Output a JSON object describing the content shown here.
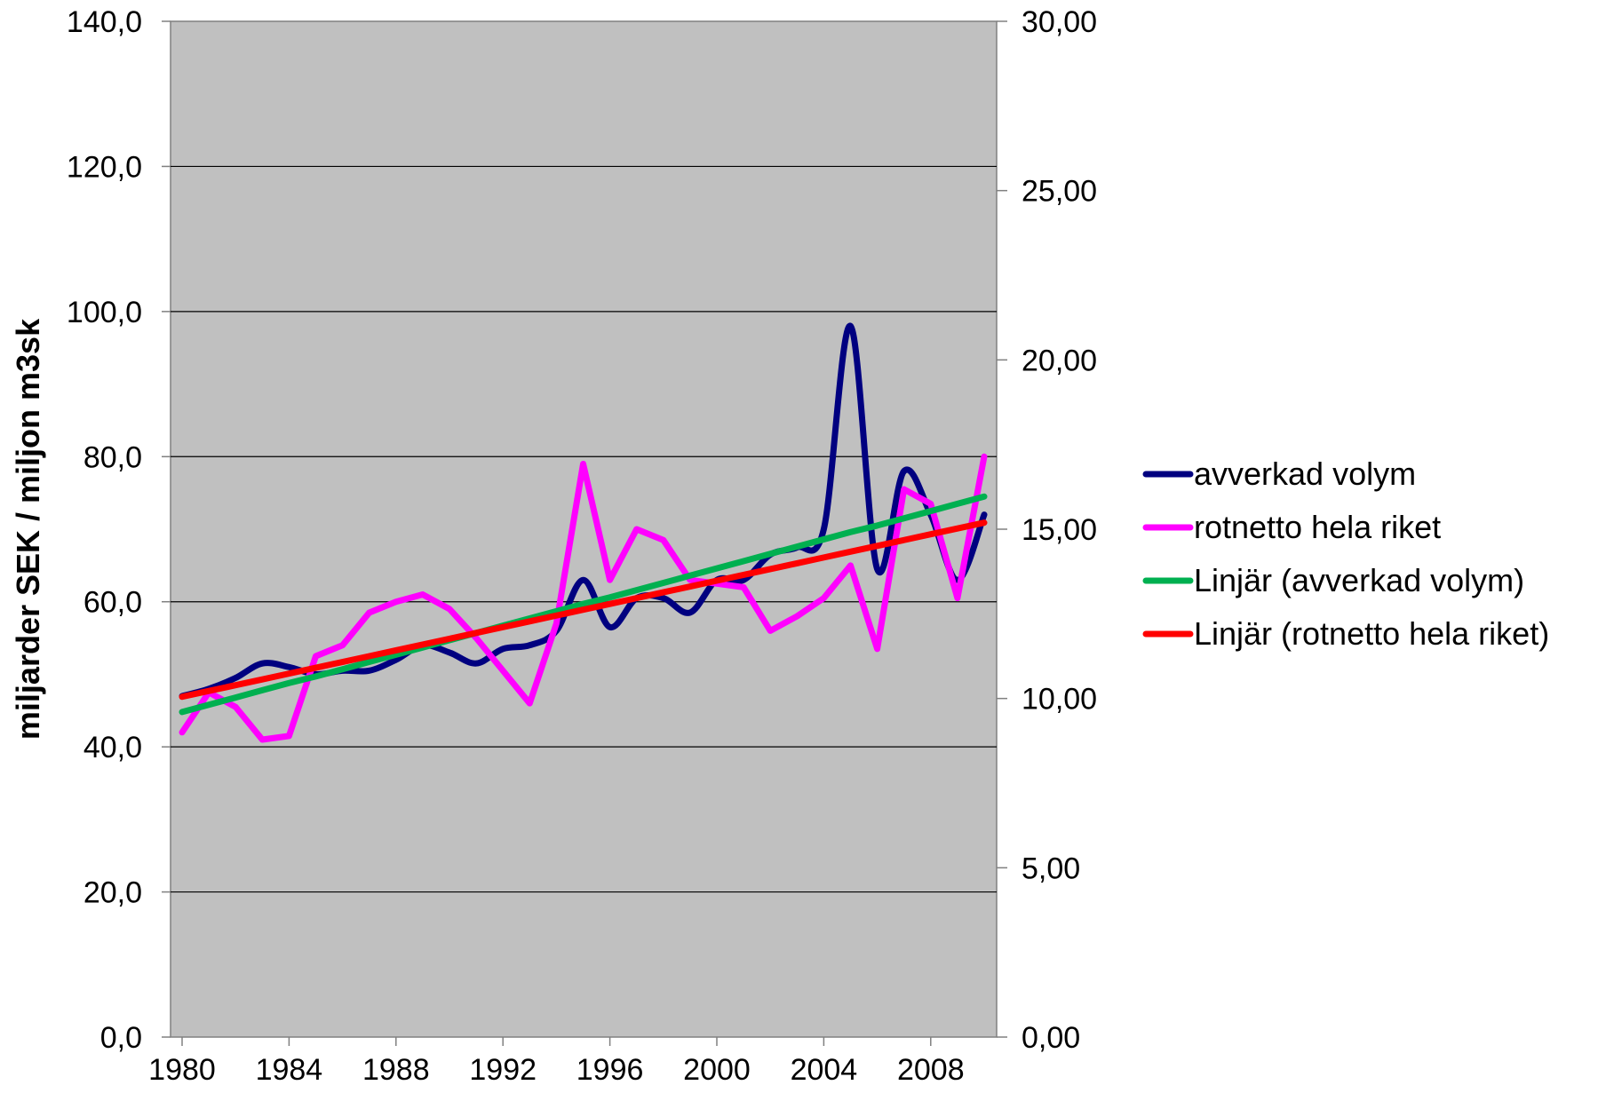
{
  "chart_data": {
    "type": "line",
    "title": "",
    "xlabel": "",
    "ylabel": "miljarder SEK / miljon m3sk",
    "y2label": "",
    "x": [
      1980,
      1981,
      1982,
      1983,
      1984,
      1985,
      1986,
      1987,
      1988,
      1989,
      1990,
      1991,
      1992,
      1993,
      1994,
      1995,
      1996,
      1997,
      1998,
      1999,
      2000,
      2001,
      2002,
      2003,
      2004,
      2005,
      2006,
      2007,
      2008,
      2009,
      2010
    ],
    "xticks": [
      "1980",
      "1984",
      "1988",
      "1992",
      "1996",
      "2000",
      "2004",
      "2008"
    ],
    "ylim": [
      0,
      140
    ],
    "yticks": [
      "0,0",
      "20,0",
      "40,0",
      "60,0",
      "80,0",
      "100,0",
      "120,0",
      "140,0"
    ],
    "y2lim": [
      0,
      30
    ],
    "y2ticks": [
      "0,00",
      "5,00",
      "10,00",
      "15,00",
      "20,00",
      "25,00",
      "30,00"
    ],
    "grid": true,
    "legend_position": "right",
    "plot_background": "#c0c0c0",
    "series": [
      {
        "name": "avverkad volym",
        "axis": "left",
        "color": "#000080",
        "smooth": true,
        "values": [
          47.0,
          48.0,
          49.5,
          51.5,
          51.0,
          50.0,
          50.5,
          50.5,
          52.0,
          54.0,
          53.0,
          51.5,
          53.5,
          54.0,
          56.0,
          63.0,
          56.5,
          60.5,
          60.5,
          58.5,
          63.0,
          63.0,
          66.5,
          67.5,
          70.0,
          98.0,
          64.5,
          78.0,
          72.0,
          63.0,
          72.0
        ]
      },
      {
        "name": "rotnetto hela riket",
        "axis": "left",
        "color": "#ff00ff",
        "smooth": false,
        "values": [
          42.0,
          47.5,
          45.5,
          41.0,
          41.5,
          52.5,
          54.0,
          58.5,
          60.0,
          61.0,
          59.0,
          55.0,
          50.5,
          46.0,
          57.0,
          79.0,
          63.0,
          70.0,
          68.5,
          63.0,
          62.5,
          62.0,
          56.0,
          58.0,
          60.5,
          65.0,
          53.5,
          75.5,
          73.5,
          60.5,
          80.0
        ]
      },
      {
        "name": "Linjär (avverkad volym)",
        "axis": "left",
        "color": "#00b050",
        "smooth": false,
        "values": [
          44.8,
          45.8,
          46.8,
          47.8,
          48.8,
          49.7,
          50.7,
          51.7,
          52.7,
          53.7,
          54.7,
          55.7,
          56.7,
          57.7,
          58.7,
          59.7,
          60.6,
          61.6,
          62.6,
          63.6,
          64.6,
          65.6,
          66.6,
          67.6,
          68.6,
          69.6,
          70.5,
          71.5,
          72.5,
          73.5,
          74.5
        ]
      },
      {
        "name": "Linjär (rotnetto hela riket)",
        "axis": "left",
        "color": "#ff0000",
        "smooth": false,
        "values": [
          46.9,
          47.7,
          48.5,
          49.3,
          50.1,
          50.9,
          51.7,
          52.5,
          53.3,
          54.1,
          54.9,
          55.7,
          56.5,
          57.3,
          58.1,
          58.9,
          59.7,
          60.5,
          61.3,
          62.1,
          62.9,
          63.7,
          64.5,
          65.3,
          66.1,
          66.9,
          67.7,
          68.5,
          69.3,
          70.1,
          70.9
        ]
      }
    ]
  }
}
